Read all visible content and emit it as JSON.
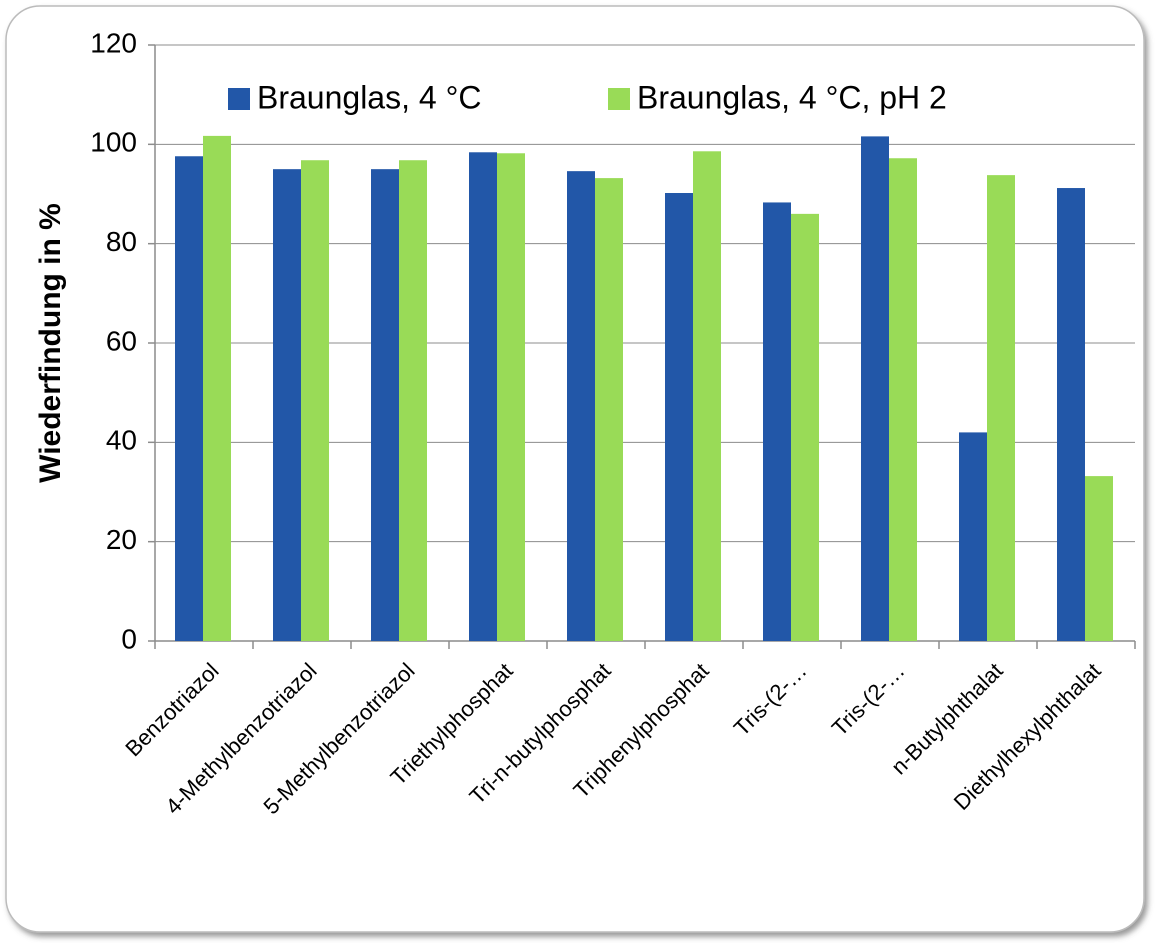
{
  "chart_data": {
    "type": "bar",
    "y_axis_label": "Wiederfindung  in %",
    "categories": [
      "Benzotriazol",
      "4-Methylbenzotriazol",
      "5-Methylbenzotriazol",
      "Triethylphosphat",
      "Tri-n-butylphosphat",
      "Triphenylphosphat",
      "Tris-(2-…",
      "Tris-(2-…",
      "n-Butylphthalat",
      "Diethylhexylphthalat"
    ],
    "series": [
      {
        "name": "Braunglas, 4 °C",
        "color": "#2257a8",
        "values": [
          97.6,
          95.0,
          95.0,
          98.4,
          94.6,
          90.2,
          88.3,
          101.6,
          42.0,
          91.2
        ]
      },
      {
        "name": "Braunglas, 4 °C, pH 2",
        "color": "#99db57",
        "values": [
          101.7,
          96.8,
          96.8,
          98.2,
          93.2,
          98.6,
          86.0,
          97.2,
          93.8,
          33.2
        ]
      }
    ],
    "ylim": [
      0,
      120
    ],
    "yticks": [
      0,
      20,
      40,
      60,
      80,
      100,
      120
    ],
    "grid": true
  }
}
